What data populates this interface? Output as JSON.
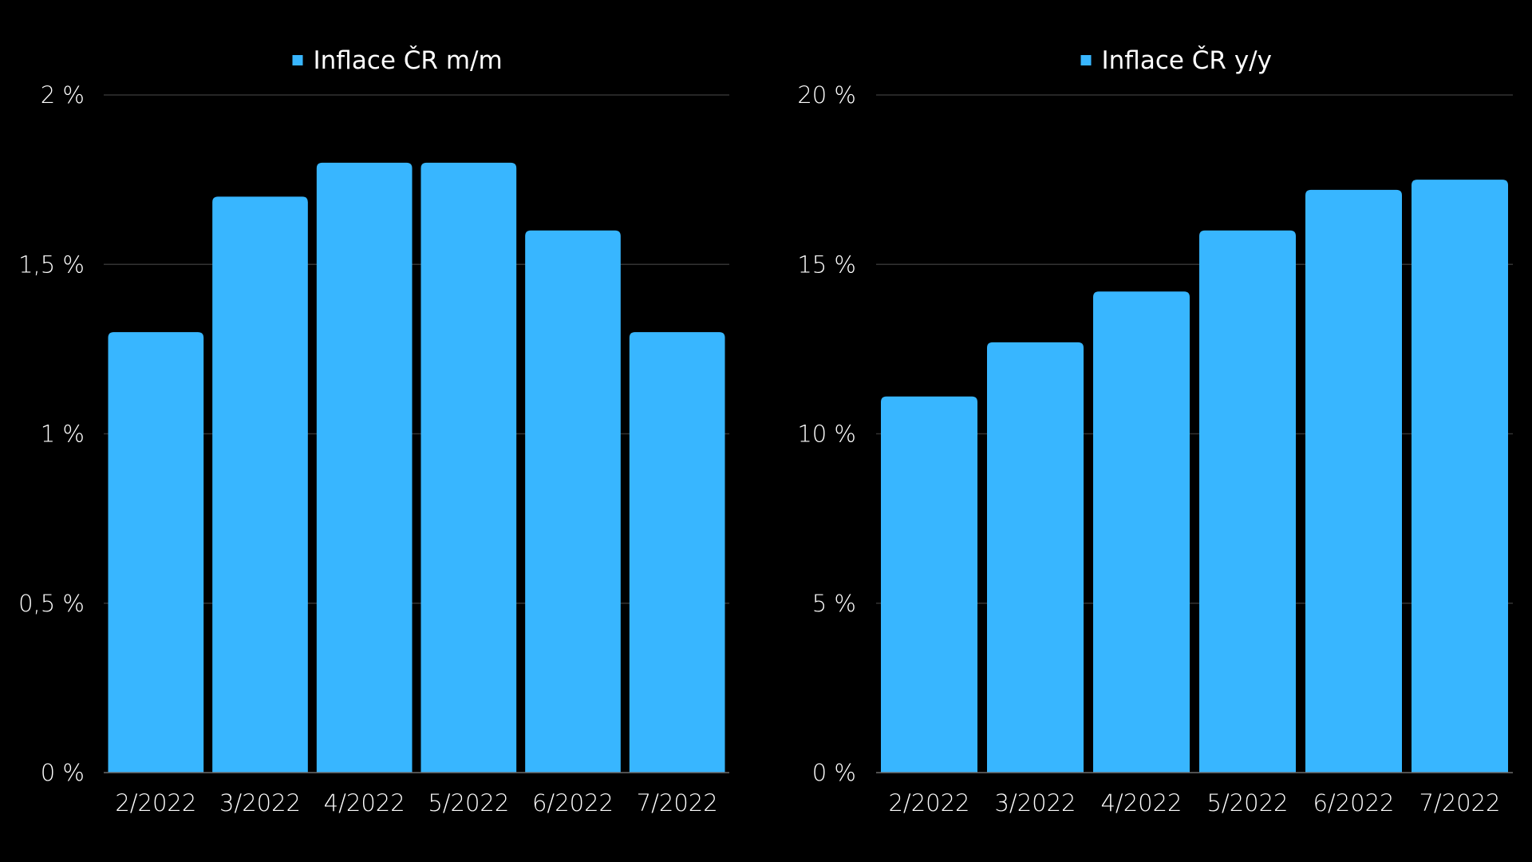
{
  "colors": {
    "background": "#000000",
    "bar": "#38b6ff",
    "text": "#ffffff",
    "grid": "#333333"
  },
  "chart_data": [
    {
      "type": "bar",
      "legend": "Inflace ČR m/m",
      "legend_position": "top-center",
      "categories": [
        "2/2022",
        "3/2022",
        "4/2022",
        "5/2022",
        "6/2022",
        "7/2022"
      ],
      "series": [
        {
          "name": "Inflace ČR m/m",
          "values": [
            1.3,
            1.7,
            1.8,
            1.8,
            1.6,
            1.3
          ]
        }
      ],
      "ylim": [
        0,
        2
      ],
      "yticks": [
        {
          "value": 0,
          "label": "0 %"
        },
        {
          "value": 0.5,
          "label": "0,5 %"
        },
        {
          "value": 1,
          "label": "1 %"
        },
        {
          "value": 1.5,
          "label": "1,5 %"
        },
        {
          "value": 2,
          "label": "2 %"
        }
      ],
      "grid": true
    },
    {
      "type": "bar",
      "legend": "Inflace ČR y/y",
      "legend_position": "top-center",
      "categories": [
        "2/2022",
        "3/2022",
        "4/2022",
        "5/2022",
        "6/2022",
        "7/2022"
      ],
      "series": [
        {
          "name": "Inflace ČR y/y",
          "values": [
            11.1,
            12.7,
            14.2,
            16.0,
            17.2,
            17.5
          ]
        }
      ],
      "ylim": [
        0,
        20
      ],
      "yticks": [
        {
          "value": 0,
          "label": "0 %"
        },
        {
          "value": 5,
          "label": "5 %"
        },
        {
          "value": 10,
          "label": "10 %"
        },
        {
          "value": 15,
          "label": "15 %"
        },
        {
          "value": 20,
          "label": "20 %"
        }
      ],
      "grid": true
    }
  ]
}
